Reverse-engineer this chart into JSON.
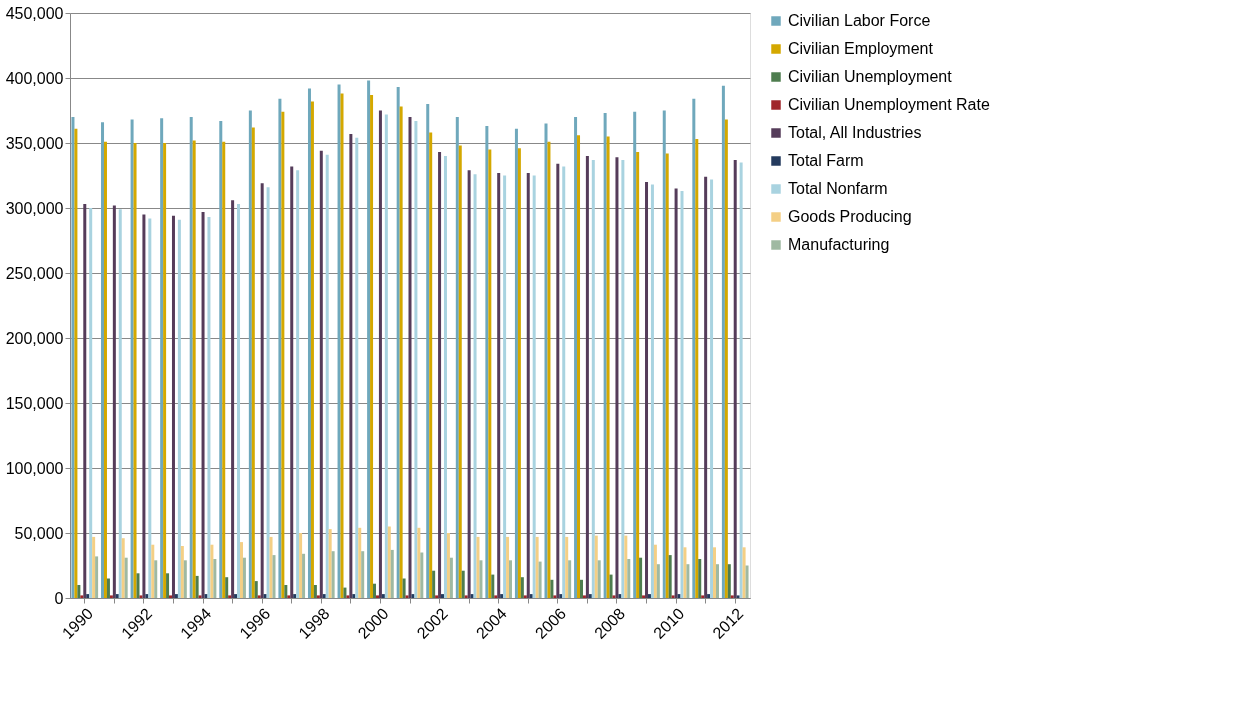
{
  "chart_data": {
    "type": "bar",
    "categories": [
      "1990",
      null,
      "1992",
      null,
      "1994",
      null,
      "1996",
      null,
      "1998",
      null,
      "2000",
      null,
      "2002",
      null,
      "2004",
      null,
      "2006",
      null,
      "2008",
      null,
      "2010",
      null,
      "2012"
    ],
    "ylim": [
      0,
      450000
    ],
    "yticks": [
      {
        "value": 0,
        "label": "0"
      },
      {
        "value": 50000,
        "label": "50,000"
      },
      {
        "value": 100000,
        "label": "100,000"
      },
      {
        "value": 150000,
        "label": "150,000"
      },
      {
        "value": 200000,
        "label": "200,000"
      },
      {
        "value": 250000,
        "label": "250,000"
      },
      {
        "value": 300000,
        "label": "300,000"
      },
      {
        "value": 350000,
        "label": "350,000"
      },
      {
        "value": 400000,
        "label": "400,000"
      },
      {
        "value": 450000,
        "label": "450,000"
      }
    ],
    "grid": "y",
    "legend": "right",
    "series": [
      {
        "name": "Civilian Labor Force",
        "color": "#6fa8bc",
        "values": [
          370000,
          366000,
          368000,
          369000,
          370000,
          367000,
          375000,
          384000,
          392000,
          395000,
          398000,
          393000,
          380000,
          370000,
          363000,
          361000,
          365000,
          370000,
          373000,
          374000,
          375000,
          384000,
          394000
        ]
      },
      {
        "name": "Civilian Employment",
        "color": "#d4a800",
        "values": [
          361000,
          351000,
          350000,
          350000,
          352000,
          351000,
          362000,
          374000,
          382000,
          388000,
          387000,
          378000,
          358000,
          348000,
          345000,
          346000,
          351000,
          356000,
          355000,
          343000,
          342000,
          353000,
          368000
        ]
      },
      {
        "name": "Civilian Unemployment",
        "color": "#4e7d4f",
        "values": [
          10000,
          15000,
          19000,
          19000,
          17000,
          16000,
          13000,
          10000,
          10000,
          8000,
          11000,
          15000,
          21000,
          21000,
          18000,
          16000,
          14000,
          14000,
          18000,
          31000,
          33000,
          30000,
          26000
        ]
      },
      {
        "name": "Civilian Unemployment Rate",
        "color": "#a0262a",
        "values": [
          2000,
          2000,
          2000,
          2000,
          2000,
          2000,
          2000,
          2000,
          2000,
          2000,
          2000,
          2000,
          2000,
          2000,
          2000,
          2000,
          2000,
          2000,
          2000,
          2000,
          2000,
          2000,
          2000
        ]
      },
      {
        "name": "Total, All Industries",
        "color": "#553c5a",
        "values": [
          303000,
          302000,
          295000,
          294000,
          297000,
          306000,
          319000,
          332000,
          344000,
          357000,
          375000,
          370000,
          343000,
          329000,
          327000,
          327000,
          334000,
          340000,
          339000,
          320000,
          315000,
          324000,
          337000
        ]
      },
      {
        "name": "Total Farm",
        "color": "#243b5e",
        "values": [
          3000,
          3000,
          3000,
          3000,
          3000,
          3000,
          3000,
          3000,
          3000,
          3000,
          3000,
          3000,
          3000,
          3000,
          3000,
          3000,
          3000,
          3000,
          3000,
          3000,
          3000,
          3000,
          2000
        ]
      },
      {
        "name": "Total Nonfarm",
        "color": "#a9d3e0",
        "values": [
          300000,
          299000,
          292000,
          291000,
          293000,
          303000,
          316000,
          329000,
          341000,
          354000,
          372000,
          367000,
          340000,
          326000,
          325000,
          325000,
          332000,
          337000,
          337000,
          318000,
          313000,
          322000,
          335000
        ]
      },
      {
        "name": "Goods Producing",
        "color": "#f4cf85",
        "values": [
          47000,
          46000,
          41000,
          40000,
          41000,
          43000,
          47000,
          50000,
          53000,
          54000,
          55000,
          54000,
          50000,
          47000,
          47000,
          47000,
          47000,
          48000,
          48000,
          41000,
          39000,
          39000,
          39000
        ]
      },
      {
        "name": "Manufacturing",
        "color": "#9fb9a2",
        "values": [
          32000,
          31000,
          29000,
          29000,
          30000,
          31000,
          33000,
          34000,
          36000,
          36000,
          37000,
          35000,
          31000,
          29000,
          29000,
          28000,
          29000,
          29000,
          30000,
          26000,
          26000,
          26000,
          25000
        ]
      }
    ]
  }
}
